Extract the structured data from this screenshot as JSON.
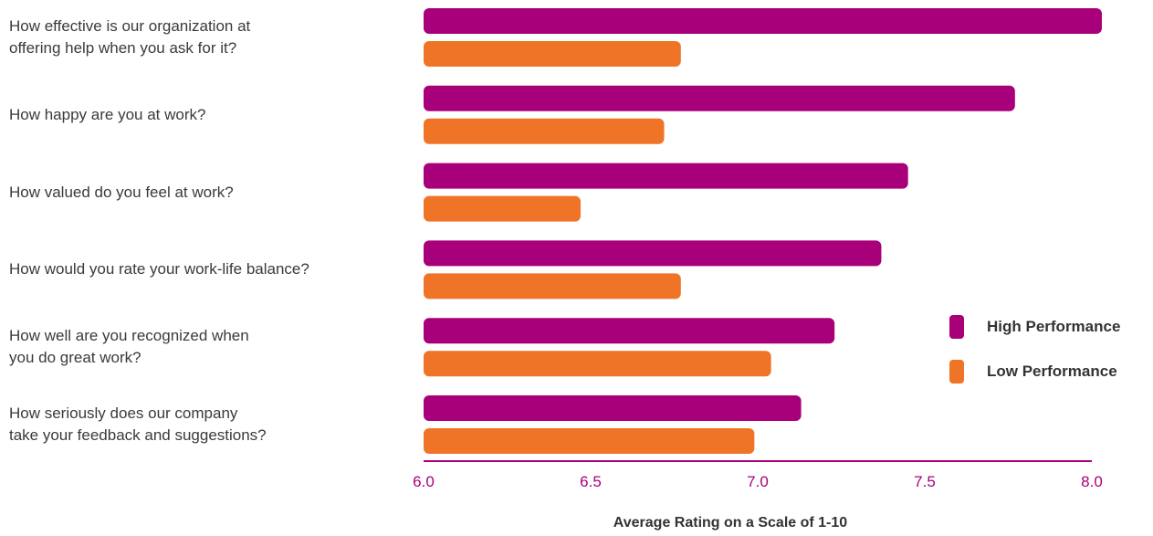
{
  "chart_data": {
    "type": "bar",
    "orientation": "horizontal",
    "categories": [
      "How effective is our organization at\noffering help when you ask for it?",
      "How happy are you at work?",
      "How valued do you feel at work?",
      "How would you rate your work-life balance?",
      "How well are you recognized when\nyou do great work?",
      "How seriously does our company\ntake your feedback and suggestions?"
    ],
    "series": [
      {
        "name": "High Performance",
        "color": "#a8007a",
        "values": [
          8.03,
          7.77,
          7.45,
          7.37,
          7.23,
          7.13
        ]
      },
      {
        "name": "Low Performance",
        "color": "#f07427",
        "values": [
          6.77,
          6.72,
          6.47,
          6.77,
          7.04,
          6.99
        ]
      }
    ],
    "xlim": [
      6.0,
      8.0
    ],
    "xticks": [
      "6.0",
      "6.5",
      "7.0",
      "7.5",
      "8.0"
    ],
    "xlabel": "Average Rating on a Scale of 1-10",
    "legend_position": "right",
    "grid": false
  }
}
